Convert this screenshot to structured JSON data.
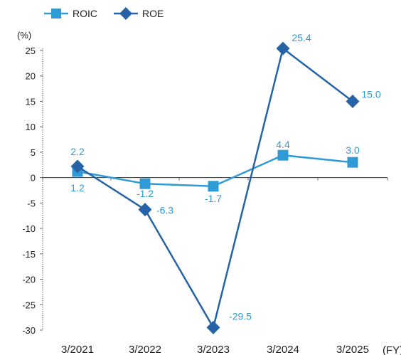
{
  "chart_data": {
    "type": "line",
    "categories": [
      "3/2021",
      "3/2022",
      "3/2023",
      "3/2024",
      "3/2025"
    ],
    "series": [
      {
        "name": "ROIC",
        "values": [
          1.2,
          -1.2,
          -1.7,
          4.4,
          3.0
        ],
        "labels": [
          "1.2",
          "-1.2",
          "-1.7",
          "4.4",
          "3.0"
        ],
        "color": "#2e9bd6",
        "marker": "square"
      },
      {
        "name": "ROE",
        "values": [
          2.2,
          -6.3,
          -29.5,
          25.4,
          15.0
        ],
        "labels": [
          "2.2",
          "-6.3",
          "-29.5",
          "25.4",
          "15.0"
        ],
        "color": "#2563a6",
        "marker": "diamond"
      }
    ],
    "y_unit": "(%)",
    "x_unit": "(FY)",
    "ylim": [
      -30,
      25
    ],
    "yticks": [
      "25",
      "20",
      "15",
      "10",
      "5",
      "0",
      "-5",
      "-10",
      "-15",
      "-20",
      "-25",
      "-30"
    ],
    "legend_position": "top-left",
    "grid": false
  }
}
